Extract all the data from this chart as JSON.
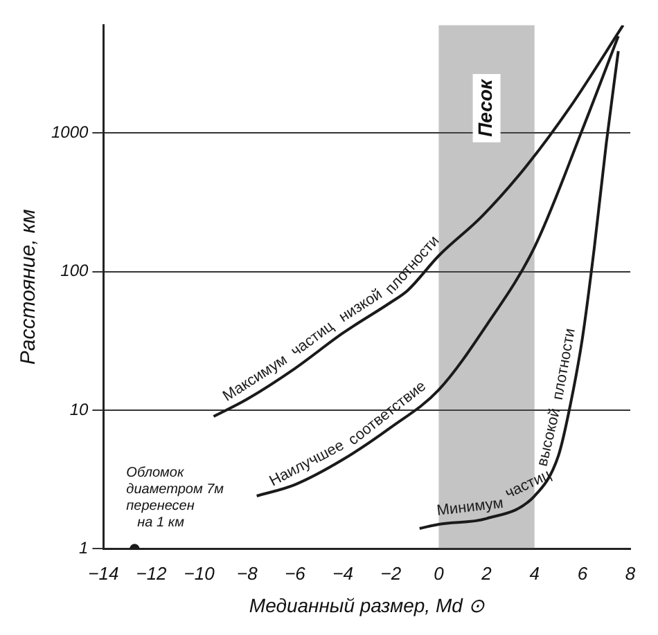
{
  "chart_data": {
    "type": "line",
    "xlabel": "Медианный размер, Md ⊙",
    "ylabel": "Расстояние, км",
    "xlim": [
      -14,
      8
    ],
    "xticks": [
      -14,
      -12,
      -10,
      -8,
      -6,
      -4,
      -2,
      0,
      2,
      4,
      6,
      8
    ],
    "ylim": [
      1,
      6000
    ],
    "yticks": [
      1,
      10,
      100,
      1000
    ],
    "log": "y",
    "grid": "y",
    "legend": false,
    "series": [
      {
        "name": "Максимум частиц низкой плотности",
        "color": "#1a1a1a",
        "x": [
          -9.4,
          -8,
          -6,
          -4,
          -2,
          -1.3,
          0,
          1.8,
          3.6,
          5.5,
          7.7
        ],
        "values": [
          9,
          12,
          20,
          36,
          60,
          73,
          130,
          250,
          560,
          1550,
          6000
        ]
      },
      {
        "name": "Наилучшее соответствие",
        "color": "#1a1a1a",
        "x": [
          -7.6,
          -6,
          -4,
          -2,
          0,
          2,
          4,
          6,
          7.5
        ],
        "values": [
          2.4,
          2.9,
          4.4,
          7.5,
          14,
          41,
          150,
          1060,
          5000
        ]
      },
      {
        "name": "Минимум частиц высокой плотности",
        "color": "#1a1a1a",
        "x": [
          -0.8,
          0,
          2,
          4,
          5,
          5.5,
          6,
          6.5,
          7,
          7.5
        ],
        "values": [
          1.4,
          1.5,
          1.65,
          2.4,
          4.7,
          11,
          33,
          150,
          850,
          3900
        ]
      },
      {
        "type": "scatter",
        "color": "#1a1a1a",
        "x": [
          -12.7
        ],
        "values": [
          1
        ]
      }
    ],
    "bands": [
      {
        "axis": "x",
        "from": 0,
        "to": 4,
        "label": "Песок",
        "color": "#555555"
      }
    ],
    "annotations": [
      {
        "text": "Обломок\nдиаметром 7м\nперенесен\nна 1 км",
        "x": -12.7,
        "y": 1
      }
    ]
  }
}
